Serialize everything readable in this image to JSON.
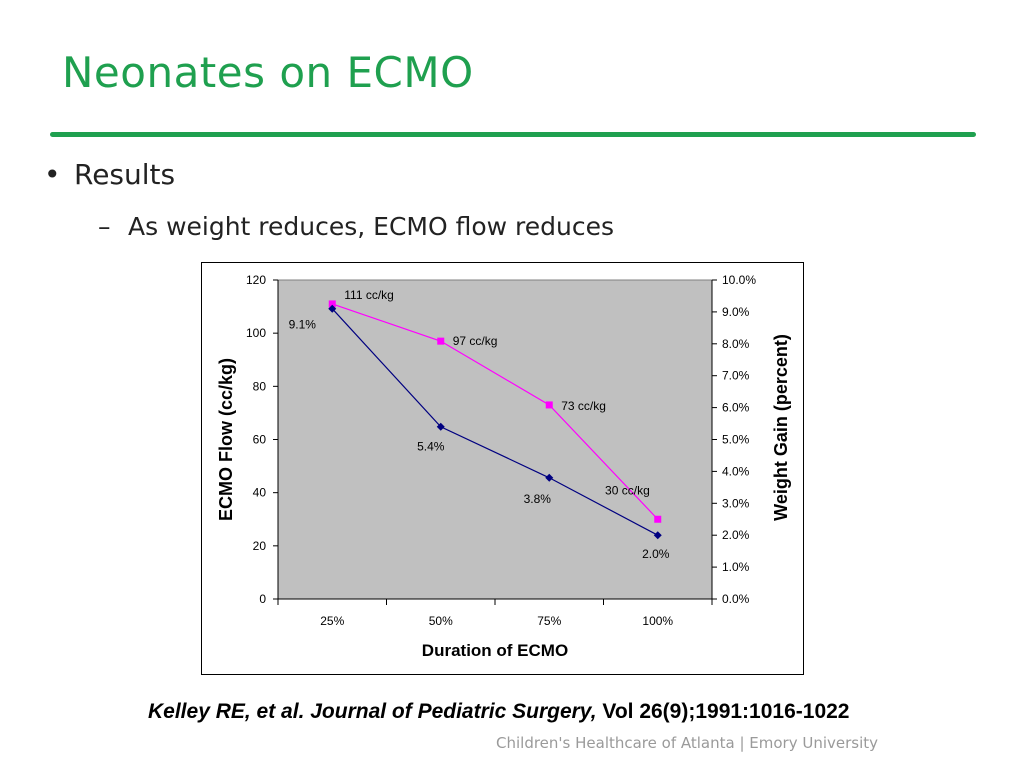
{
  "slide": {
    "title": "Neonates on ECMO",
    "bullet_level1": "Results",
    "bullet_level2_dash": "–",
    "bullet_level1_mark": "•",
    "bullet_level2": "As weight reduces, ECMO flow reduces",
    "citation_italic": "Kelley RE, et al.  Journal of Pediatric Surgery,",
    "citation_plain": " Vol 26(9);1991:1016-1022",
    "footer": "Children's Healthcare of Atlanta | Emory University",
    "accent_color": "#1fa04f"
  },
  "chart_data": {
    "type": "line",
    "categories": [
      "25%",
      "50%",
      "75%",
      "100%"
    ],
    "xlabel": "Duration of ECMO",
    "ylabel": "ECMO Flow (cc/kg)",
    "y2label": "Weight Gain (percent)",
    "ylim": [
      0,
      120
    ],
    "y_ticks": [
      0,
      20,
      40,
      60,
      80,
      100,
      120
    ],
    "y2lim": [
      0,
      10
    ],
    "y2_ticks": [
      0,
      1,
      2,
      3,
      4,
      5,
      6,
      7,
      8,
      9,
      10
    ],
    "y2_tick_labels": [
      "0.0%",
      "1.0%",
      "2.0%",
      "3.0%",
      "4.0%",
      "5.0%",
      "6.0%",
      "7.0%",
      "8.0%",
      "9.0%",
      "10.0%"
    ],
    "plot_background": "#c0c0c0",
    "series": [
      {
        "name": "ECMO Flow",
        "axis": "left",
        "color": "#ff00ff",
        "marker": "square",
        "values": [
          111,
          97,
          73,
          30
        ],
        "labels": [
          "111 cc/kg",
          "97 cc/kg",
          "73 cc/kg",
          "30 cc/kg"
        ]
      },
      {
        "name": "Weight Gain",
        "axis": "right",
        "color": "#000080",
        "marker": "diamond",
        "values": [
          9.1,
          5.4,
          3.8,
          2.0
        ],
        "labels": [
          "9.1%",
          "5.4%",
          "3.8%",
          "2.0%"
        ]
      }
    ]
  }
}
